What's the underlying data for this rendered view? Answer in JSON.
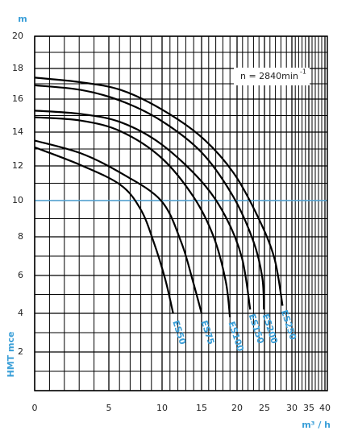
{
  "chart_data": {
    "type": "line",
    "y_unit": "m",
    "ylabel": "HMT mce",
    "xlabel": "m³ / h",
    "annotation": "n = 2840min",
    "annotation_sup": "-1",
    "xlim": [
      0,
      40
    ],
    "xticks": [
      0,
      5,
      10,
      15,
      20,
      25,
      30,
      35,
      40
    ],
    "ylim": [
      0,
      20
    ],
    "yticks": [
      0,
      2,
      4,
      6,
      8,
      10,
      12,
      14,
      16,
      18,
      20
    ],
    "grid": true,
    "reference_line": {
      "y": 10,
      "color": "#5aaee0"
    },
    "series": [
      {
        "name": "ES50",
        "color": "#000000",
        "x": [
          0,
          3.1,
          6.1,
          8.0,
          9.2,
          10.4,
          11.4
        ],
        "values": [
          13.1,
          12.05,
          10.9,
          9.5,
          7.75,
          5.8,
          4.0
        ]
      },
      {
        "name": "ES75",
        "color": "#000000",
        "x": [
          0,
          3.1,
          6.1,
          9.9,
          12.4,
          13.9,
          15.0
        ],
        "values": [
          13.5,
          12.75,
          11.6,
          10.0,
          7.75,
          5.7,
          4.0
        ]
      },
      {
        "name": "ES100",
        "color": "#000000",
        "x": [
          0,
          3.1,
          6.1,
          9.9,
          14.0,
          16.7,
          18.4,
          19.0
        ],
        "values": [
          14.9,
          14.7,
          14.05,
          12.5,
          10.2,
          8.0,
          5.7,
          3.8
        ]
      },
      {
        "name": "ES150",
        "color": "#000000",
        "x": [
          0,
          3.1,
          6.1,
          9.9,
          15.0,
          18.4,
          20.9,
          22.4
        ],
        "values": [
          15.3,
          15.1,
          14.6,
          13.3,
          11.1,
          9.1,
          6.9,
          4.2
        ]
      },
      {
        "name": "ES200",
        "color": "#000000",
        "x": [
          0,
          3.1,
          6.1,
          9.9,
          15.0,
          19.5,
          23.0,
          24.6,
          24.9
        ],
        "values": [
          16.9,
          16.6,
          15.9,
          14.7,
          12.8,
          10.2,
          7.75,
          5.9,
          4.2
        ]
      },
      {
        "name": "ES250",
        "color": "#000000",
        "x": [
          0,
          3.1,
          6.1,
          9.9,
          15.0,
          19.5,
          23.8,
          26.8,
          28.3
        ],
        "values": [
          17.4,
          17.1,
          16.6,
          15.4,
          13.7,
          11.6,
          9.1,
          6.9,
          4.4
        ]
      }
    ]
  }
}
